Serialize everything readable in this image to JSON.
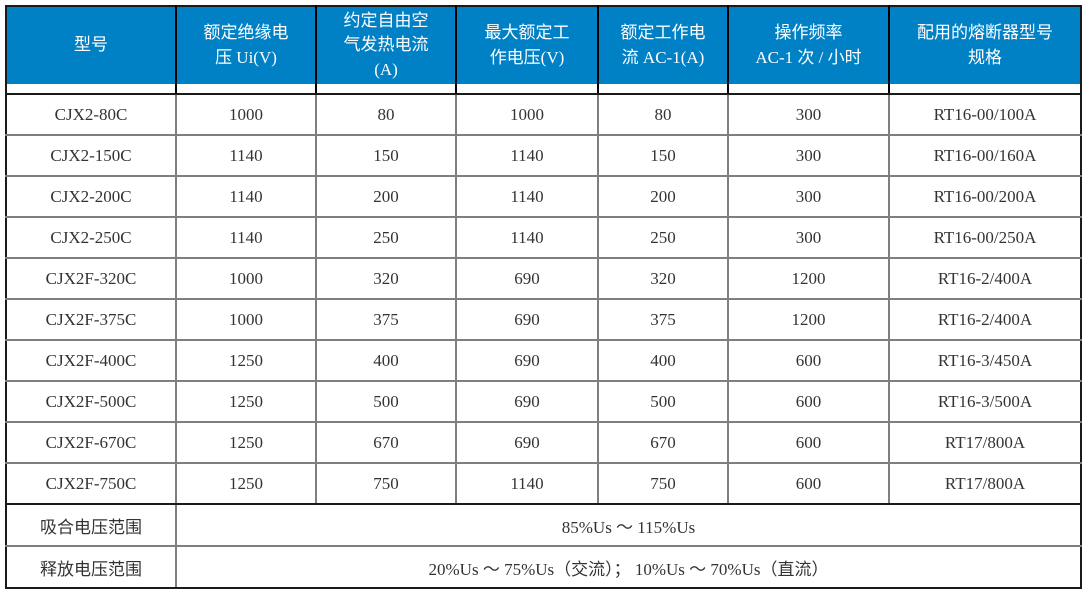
{
  "table": {
    "title_semantic": "contactor-specification-table",
    "columns": [
      {
        "label": "型号",
        "width": 170
      },
      {
        "label": "额定绝缘电\n压 Ui(V)",
        "width": 140
      },
      {
        "label": "约定自由空\n气发热电流\n(A)",
        "width": 140
      },
      {
        "label": "最大额定工\n作电压(V)",
        "width": 142
      },
      {
        "label": "额定工作电\n流 AC-1(A)",
        "width": 130
      },
      {
        "label": "操作频率\nAC-1 次 / 小时",
        "width": 161
      },
      {
        "label": "配用的熔断器型号\n规格",
        "width": 192
      }
    ],
    "rows": [
      [
        "CJX2-80C",
        "1000",
        "80",
        "1000",
        "80",
        "300",
        "RT16-00/100A"
      ],
      [
        "CJX2-150C",
        "1140",
        "150",
        "1140",
        "150",
        "300",
        "RT16-00/160A"
      ],
      [
        "CJX2-200C",
        "1140",
        "200",
        "1140",
        "200",
        "300",
        "RT16-00/200A"
      ],
      [
        "CJX2-250C",
        "1140",
        "250",
        "1140",
        "250",
        "300",
        "RT16-00/250A"
      ],
      [
        "CJX2F-320C",
        "1000",
        "320",
        "690",
        "320",
        "1200",
        "RT16-2/400A"
      ],
      [
        "CJX2F-375C",
        "1000",
        "375",
        "690",
        "375",
        "1200",
        "RT16-2/400A"
      ],
      [
        "CJX2F-400C",
        "1250",
        "400",
        "690",
        "400",
        "600",
        "RT16-3/450A"
      ],
      [
        "CJX2F-500C",
        "1250",
        "500",
        "690",
        "500",
        "600",
        "RT16-3/500A"
      ],
      [
        "CJX2F-670C",
        "1250",
        "670",
        "690",
        "670",
        "600",
        "RT17/800A"
      ],
      [
        "CJX2F-750C",
        "1250",
        "750",
        "1140",
        "750",
        "600",
        "RT17/800A"
      ]
    ],
    "footer_rows": [
      {
        "label": "吸合电压范围",
        "value": "85%Us ～ 115%Us"
      },
      {
        "label": "释放电压范围",
        "value": "20%Us ～ 75%Us（交流）； 10%Us ～ 70%Us（直流）"
      }
    ],
    "colors": {
      "header_bg": "#0081C6",
      "header_text": "#FFFFFF",
      "body_text": "#333333",
      "grid_line": "#7F7F7F",
      "outer_border": "#1A1A1A"
    }
  }
}
